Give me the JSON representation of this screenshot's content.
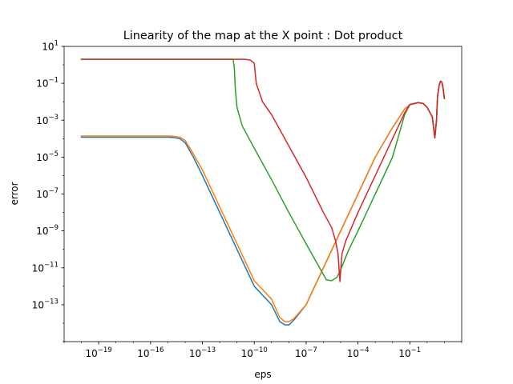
{
  "chart_data": {
    "type": "line",
    "title": "Linearity of the map at the X point : Dot product",
    "xlabel": "eps",
    "ylabel": "error",
    "xscale": "log",
    "yscale": "log",
    "xlim": [
      1e-21,
      100
    ],
    "ylim": [
      1e-15,
      10
    ],
    "grid": false,
    "legend": "none",
    "x_ticks": [
      {
        "base": "10",
        "exp": "−19",
        "value": 1e-19
      },
      {
        "base": "10",
        "exp": "−16",
        "value": 1e-16
      },
      {
        "base": "10",
        "exp": "−13",
        "value": 1e-13
      },
      {
        "base": "10",
        "exp": "−10",
        "value": 1e-10
      },
      {
        "base": "10",
        "exp": "−7",
        "value": 1e-07
      },
      {
        "base": "10",
        "exp": "−4",
        "value": 0.0001
      },
      {
        "base": "10",
        "exp": "−1",
        "value": 0.1
      }
    ],
    "y_ticks": [
      {
        "base": "10",
        "exp": "1",
        "value": 10
      },
      {
        "base": "10",
        "exp": "−1",
        "value": 0.1
      },
      {
        "base": "10",
        "exp": "−3",
        "value": 0.001
      },
      {
        "base": "10",
        "exp": "−5",
        "value": 1e-05
      },
      {
        "base": "10",
        "exp": "−7",
        "value": 1e-07
      },
      {
        "base": "10",
        "exp": "−9",
        "value": 1e-09
      },
      {
        "base": "10",
        "exp": "−11",
        "value": 1e-11
      },
      {
        "base": "10",
        "exp": "−13",
        "value": 1e-13
      }
    ],
    "series": [
      {
        "color": "#1f77b4",
        "points": [
          [
            1e-20,
            0.00012
          ],
          [
            1e-18,
            0.00012
          ],
          [
            1e-16,
            0.00012
          ],
          [
            1e-15,
            0.00012
          ],
          [
            2e-15,
            0.000115
          ],
          [
            5e-15,
            0.0001
          ],
          [
            1e-14,
            6e-05
          ],
          [
            3e-14,
            1e-05
          ],
          [
            1e-13,
            1e-06
          ],
          [
            1e-12,
            1e-08
          ],
          [
            1e-11,
            1e-10
          ],
          [
            1e-10,
            1e-12
          ],
          [
            1e-09,
            1e-13
          ],
          [
            3e-09,
            1.2e-14
          ],
          [
            6e-09,
            8e-15
          ],
          [
            1e-08,
            8e-15
          ],
          [
            2e-08,
            1.5e-14
          ],
          [
            1e-07,
            1e-13
          ],
          [
            1e-06,
            1e-11
          ],
          [
            1e-05,
            1e-09
          ],
          [
            0.0001,
            1e-07
          ],
          [
            0.001,
            1e-05
          ],
          [
            0.01,
            0.0004
          ],
          [
            0.05,
            0.004
          ],
          [
            0.1,
            0.007
          ],
          [
            0.3,
            0.009
          ],
          [
            0.6,
            0.008
          ],
          [
            1,
            0.005
          ],
          [
            2,
            0.0015
          ],
          [
            2.8,
            0.00011
          ],
          [
            3.5,
            0.001
          ],
          [
            4,
            0.02
          ],
          [
            5,
            0.08
          ],
          [
            6,
            0.13
          ],
          [
            7,
            0.12
          ],
          [
            8,
            0.07
          ],
          [
            10,
            0.015
          ]
        ]
      },
      {
        "color": "#ff7f0e",
        "points": [
          [
            1e-20,
            0.00014
          ],
          [
            1e-18,
            0.00014
          ],
          [
            1e-16,
            0.00014
          ],
          [
            1e-15,
            0.00014
          ],
          [
            2e-15,
            0.000135
          ],
          [
            5e-15,
            0.00012
          ],
          [
            1e-14,
            8e-05
          ],
          [
            3e-14,
            1.5e-05
          ],
          [
            1e-13,
            2e-06
          ],
          [
            1e-12,
            2e-08
          ],
          [
            1e-11,
            2e-10
          ],
          [
            1e-10,
            2e-12
          ],
          [
            1e-09,
            2e-13
          ],
          [
            3e-09,
            2e-14
          ],
          [
            6e-09,
            1.2e-14
          ],
          [
            1e-08,
            1.2e-14
          ],
          [
            2e-08,
            1.8e-14
          ],
          [
            1e-07,
            1e-13
          ],
          [
            1e-06,
            1e-11
          ],
          [
            1e-05,
            1e-09
          ],
          [
            0.0001,
            1e-07
          ],
          [
            0.001,
            1e-05
          ],
          [
            0.01,
            0.0004
          ],
          [
            0.05,
            0.004
          ],
          [
            0.1,
            0.007
          ],
          [
            0.3,
            0.009
          ],
          [
            0.6,
            0.008
          ],
          [
            1,
            0.005
          ],
          [
            2,
            0.0015
          ],
          [
            2.8,
            0.00011
          ],
          [
            3.5,
            0.001
          ],
          [
            4,
            0.02
          ],
          [
            5,
            0.08
          ],
          [
            6,
            0.13
          ],
          [
            7,
            0.12
          ],
          [
            8,
            0.07
          ],
          [
            10,
            0.015
          ]
        ]
      },
      {
        "color": "#2ca02c",
        "points": [
          [
            1e-20,
            2
          ],
          [
            1e-16,
            2
          ],
          [
            1e-13,
            2
          ],
          [
            6e-12,
            2
          ],
          [
            7e-12,
            0.7
          ],
          [
            8e-12,
            0.05
          ],
          [
            1e-11,
            0.005
          ],
          [
            2e-11,
            0.0005
          ],
          [
            1e-10,
            3e-05
          ],
          [
            1e-09,
            6e-07
          ],
          [
            1e-08,
            1e-08
          ],
          [
            1e-07,
            2e-10
          ],
          [
            6e-07,
            1e-11
          ],
          [
            1.5e-06,
            2.2e-12
          ],
          [
            3e-06,
            2e-12
          ],
          [
            6e-06,
            3e-12
          ],
          [
            1e-05,
            8e-12
          ],
          [
            3e-05,
            1e-10
          ],
          [
            0.0001,
            1e-09
          ],
          [
            0.001,
            1e-07
          ],
          [
            0.01,
            1e-05
          ],
          [
            0.05,
            0.002
          ],
          [
            0.1,
            0.007
          ],
          [
            0.3,
            0.009
          ],
          [
            0.6,
            0.008
          ],
          [
            1,
            0.005
          ],
          [
            2,
            0.0015
          ],
          [
            2.8,
            0.00011
          ],
          [
            3.5,
            0.001
          ],
          [
            4,
            0.02
          ],
          [
            5,
            0.08
          ],
          [
            6,
            0.13
          ],
          [
            7,
            0.12
          ],
          [
            8,
            0.07
          ],
          [
            10,
            0.015
          ]
        ]
      },
      {
        "color": "#d62728",
        "points": [
          [
            1e-20,
            2
          ],
          [
            1e-16,
            2
          ],
          [
            1e-13,
            2
          ],
          [
            1e-11,
            2
          ],
          [
            3e-11,
            2
          ],
          [
            6e-11,
            1.8
          ],
          [
            1e-10,
            1.2
          ],
          [
            1.3e-10,
            0.1
          ],
          [
            3e-10,
            0.01
          ],
          [
            1e-09,
            0.002
          ],
          [
            1e-08,
            4e-05
          ],
          [
            1e-07,
            8e-07
          ],
          [
            1e-06,
            1e-08
          ],
          [
            3e-06,
            1.5e-09
          ],
          [
            5e-06,
            3e-10
          ],
          [
            7e-06,
            6e-11
          ],
          [
            9e-06,
            1.8e-12
          ],
          [
            1.2e-05,
            6e-11
          ],
          [
            2e-05,
            3e-10
          ],
          [
            0.0001,
            1e-08
          ],
          [
            0.001,
            1e-06
          ],
          [
            0.01,
            0.0001
          ],
          [
            0.05,
            0.0025
          ],
          [
            0.1,
            0.007
          ],
          [
            0.3,
            0.009
          ],
          [
            0.6,
            0.008
          ],
          [
            1,
            0.005
          ],
          [
            2,
            0.0015
          ],
          [
            2.8,
            0.00011
          ],
          [
            3.5,
            0.001
          ],
          [
            4,
            0.02
          ],
          [
            5,
            0.08
          ],
          [
            6,
            0.13
          ],
          [
            7,
            0.12
          ],
          [
            8,
            0.07
          ],
          [
            10,
            0.015
          ]
        ]
      }
    ]
  }
}
